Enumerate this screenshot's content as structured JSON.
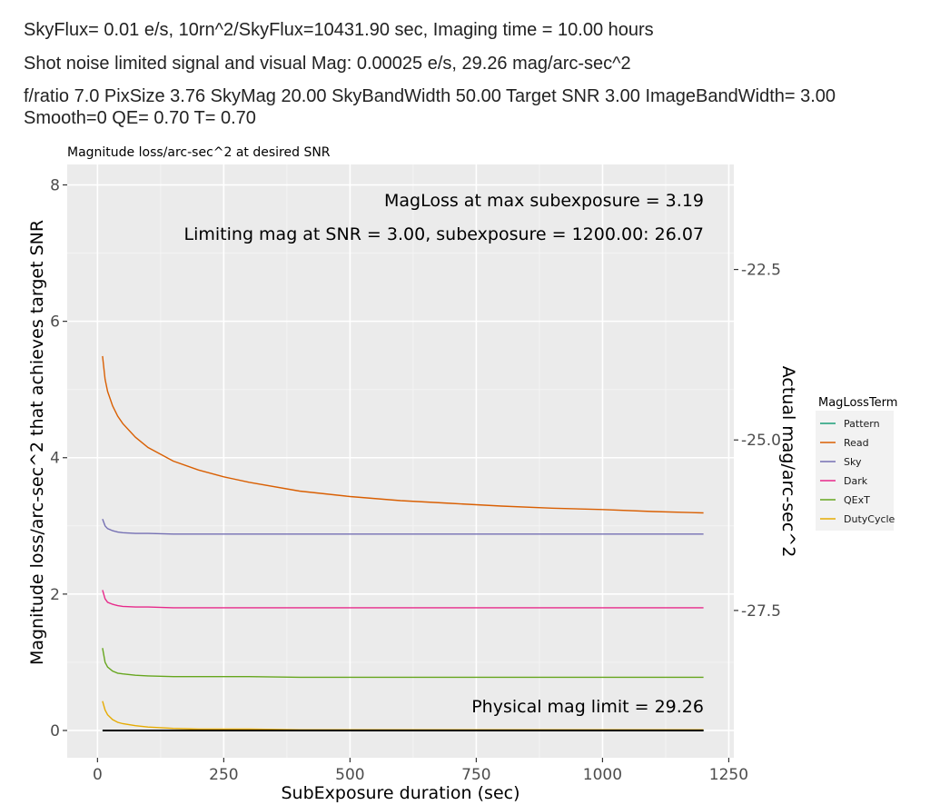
{
  "header": {
    "line1": "SkyFlux= 0.01 e/s, 10rn^2/SkyFlux=10431.90 sec, Imaging time = 10.00 hours",
    "line2": "Shot noise limited signal and visual Mag: 0.00025 e/s, 29.26 mag/arc-sec^2",
    "line3a": "f/ratio 7.0 PixSize 3.76 SkyMag 20.00 SkyBandWidth 50.00 Target SNR 3.00 ImageBandWidth= 3.00",
    "line3b": "Smooth=0 QE= 0.70 T= 0.70"
  },
  "chart_data": {
    "type": "line",
    "title": "Magnitude loss/arc-sec^2 at desired SNR",
    "xlabel": "SubExposure duration (sec)",
    "ylabel": "Magnitude loss/arc-sec^2 that achieves target SNR",
    "y2label": "Actual mag/arc-sec^2",
    "xlim": [
      -60,
      1260
    ],
    "ylim": [
      -0.4,
      8.3
    ],
    "xticks": [
      "0",
      "250",
      "500",
      "750",
      "1000",
      "1250"
    ],
    "xtick_values": [
      0,
      250,
      500,
      750,
      1000,
      1250
    ],
    "yticks": [
      "0",
      "2",
      "4",
      "6",
      "8"
    ],
    "ytick_values": [
      0,
      2,
      4,
      6,
      8
    ],
    "y2ticks": [
      "-22.5",
      "-25.0",
      "-27.5"
    ],
    "y2tick_values": [
      6.76,
      4.26,
      1.76
    ],
    "grid": true,
    "legend_title": "MagLossTerm",
    "legend_position": "right",
    "annotations": [
      "MagLoss at max subexposure =   3.19",
      "Limiting mag at SNR =   3.00, subexposure = 1200.00:  26.07",
      "Physical mag limit =  29.26"
    ],
    "x": [
      10,
      15,
      20,
      30,
      40,
      50,
      75,
      100,
      150,
      200,
      250,
      300,
      400,
      500,
      600,
      700,
      800,
      900,
      1000,
      1100,
      1200
    ],
    "series": [
      {
        "name": "Pattern",
        "color": "#1b9e77",
        "values": [
          0,
          0,
          0,
          0,
          0,
          0,
          0,
          0,
          0,
          0,
          0,
          0,
          0,
          0,
          0,
          0,
          0,
          0,
          0,
          0,
          0
        ]
      },
      {
        "name": "Read",
        "color": "#d95f02",
        "values": [
          5.49,
          5.15,
          4.97,
          4.76,
          4.61,
          4.5,
          4.3,
          4.15,
          3.95,
          3.82,
          3.72,
          3.64,
          3.51,
          3.43,
          3.37,
          3.33,
          3.29,
          3.26,
          3.24,
          3.21,
          3.19
        ]
      },
      {
        "name": "Sky",
        "color": "#7570b3",
        "values": [
          3.1,
          3.0,
          2.96,
          2.93,
          2.91,
          2.9,
          2.89,
          2.89,
          2.88,
          2.88,
          2.88,
          2.88,
          2.88,
          2.88,
          2.88,
          2.88,
          2.88,
          2.88,
          2.88,
          2.88,
          2.88
        ]
      },
      {
        "name": "Dark",
        "color": "#e7298a",
        "values": [
          2.06,
          1.93,
          1.88,
          1.85,
          1.83,
          1.82,
          1.81,
          1.81,
          1.8,
          1.8,
          1.8,
          1.8,
          1.8,
          1.8,
          1.8,
          1.8,
          1.8,
          1.8,
          1.8,
          1.8,
          1.8
        ]
      },
      {
        "name": "QExT",
        "color": "#66a61e",
        "values": [
          1.21,
          1.0,
          0.93,
          0.87,
          0.84,
          0.83,
          0.81,
          0.8,
          0.79,
          0.79,
          0.79,
          0.79,
          0.78,
          0.78,
          0.78,
          0.78,
          0.78,
          0.78,
          0.78,
          0.78,
          0.78
        ]
      },
      {
        "name": "DutyCycle",
        "color": "#e6ab02",
        "values": [
          0.43,
          0.3,
          0.23,
          0.16,
          0.12,
          0.1,
          0.07,
          0.05,
          0.03,
          0.02,
          0.02,
          0.02,
          0.01,
          0.01,
          0.01,
          0.01,
          0.01,
          0.01,
          0.01,
          0.01,
          0.01
        ]
      }
    ],
    "baseline": {
      "value": 0,
      "color": "#000000"
    }
  }
}
